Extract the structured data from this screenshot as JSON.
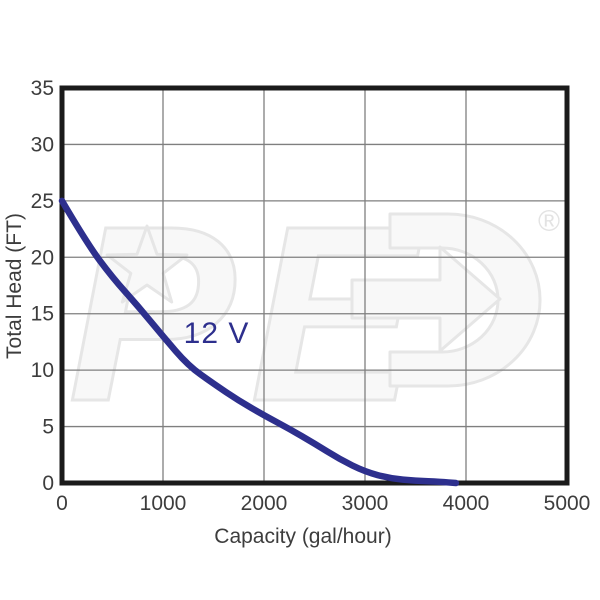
{
  "chart_data": {
    "type": "line",
    "title": "",
    "xlabel": "Capacity (gal/hour)",
    "ylabel": "Total Head (FT)",
    "xlim": [
      0,
      5000
    ],
    "ylim": [
      0,
      35
    ],
    "xticks": [
      0,
      1000,
      2000,
      3000,
      4000,
      5000
    ],
    "yticks": [
      0,
      5,
      10,
      15,
      20,
      25,
      30,
      35
    ],
    "grid": true,
    "legend": "none",
    "series": [
      {
        "name": "12 V",
        "color": "#2d2f8d",
        "x": [
          0,
          250,
          500,
          750,
          1000,
          1250,
          1500,
          1750,
          2000,
          2250,
          2500,
          2750,
          3000,
          3250,
          3500,
          3750,
          3900
        ],
        "y": [
          25,
          21.2,
          18.2,
          15.7,
          13,
          10.4,
          8.8,
          7.3,
          6,
          4.8,
          3.5,
          2.1,
          1,
          0.4,
          0.2,
          0.1,
          0
        ]
      }
    ],
    "annotation": {
      "text": "12 V",
      "x": 1530,
      "y": 13.3
    }
  },
  "watermark": {
    "letter_p": "P",
    "letter_e": "E",
    "registered_symbol": "®"
  },
  "colors": {
    "curve": "#2d2f8d",
    "grid": "#7f7f7f",
    "frame": "#1b1b1b",
    "tick_text": "#3d3d3d",
    "watermark_stroke": "#e6e6e6",
    "watermark_fill": "#f8f8f8"
  }
}
